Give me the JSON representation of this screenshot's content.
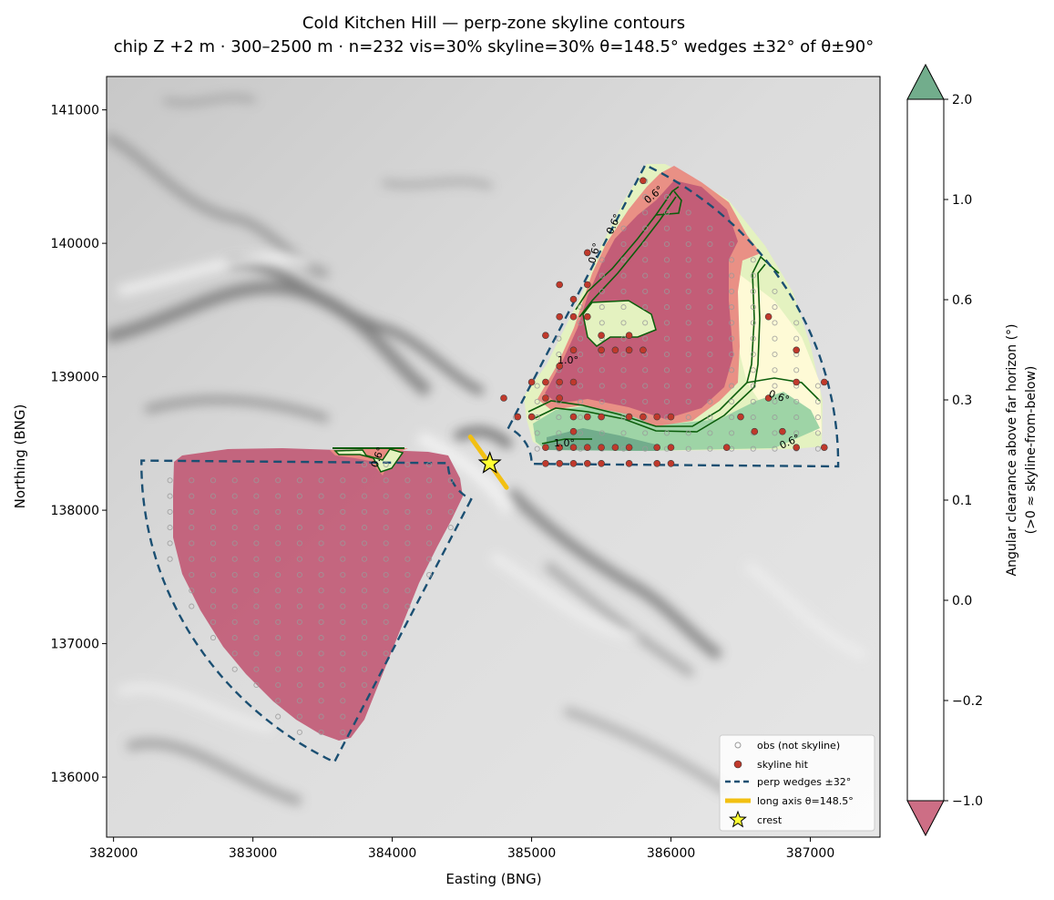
{
  "chart_data": {
    "type": "contour",
    "title": "Cold Kitchen Hill — perp-zone skyline contours",
    "subtitle": "chip Z +2 m · 300–2500 m · n=232  vis=30%  skyline=30%  θ=148.5°  wedges ±32° of θ±90°",
    "xlabel": "Easting (BNG)",
    "ylabel": "Northing (BNG)",
    "xlim": [
      381950,
      387500
    ],
    "ylim": [
      135550,
      141250
    ],
    "xticks": [
      "382000",
      "383000",
      "384000",
      "385000",
      "386000",
      "387000"
    ],
    "yticks": [
      "136000",
      "137000",
      "138000",
      "139000",
      "140000",
      "141000"
    ],
    "colorbar": {
      "label_line1": "Angular clearance above far horizon (°)",
      "label_line2": "(>0 ≈ skyline-from-below)",
      "levels": [
        "−1.0",
        "−0.2",
        "0.0",
        "0.1",
        "0.3",
        "0.6",
        "1.0",
        "2.0"
      ],
      "colors": [
        "#e98a82",
        "#fcc898",
        "#fde2b6",
        "#feedc0",
        "#fefad6",
        "#e4f2c0",
        "#9ed4a6"
      ],
      "under_color": "#cd6e85",
      "over_color": "#72ad8c"
    },
    "contour_labels": [
      "0.6°",
      "0.6°",
      "0.6°",
      "0.6°",
      "0.6°",
      "1.0°",
      "1.0°",
      "0.6°"
    ],
    "crest": {
      "easting": 384700,
      "northing": 138350
    },
    "long_axis": {
      "theta_deg": 148.5,
      "from": [
        384560,
        138550
      ],
      "to": [
        384820,
        138170
      ]
    },
    "wedges": {
      "ne": {
        "center": [
          384700,
          138350
        ],
        "r_inner": 300,
        "r_outer": 2500,
        "bearing_from": 26.5,
        "bearing_to": 90.5
      },
      "sw": {
        "center": [
          384700,
          138350
        ],
        "r_inner": 300,
        "r_outer": 2500,
        "bearing_from": 206.5,
        "bearing_to": 270.5
      }
    },
    "skyline_hits": [
      [
        385800,
        140470
      ],
      [
        385400,
        139930
      ],
      [
        385400,
        139690
      ],
      [
        385200,
        139690
      ],
      [
        385300,
        139580
      ],
      [
        385200,
        139450
      ],
      [
        385300,
        139450
      ],
      [
        385400,
        139450
      ],
      [
        385500,
        139310
      ],
      [
        385700,
        139310
      ],
      [
        385100,
        139310
      ],
      [
        385300,
        139200
      ],
      [
        385500,
        139200
      ],
      [
        385600,
        139200
      ],
      [
        385700,
        139200
      ],
      [
        385800,
        139200
      ],
      [
        385200,
        139080
      ],
      [
        385000,
        138960
      ],
      [
        385100,
        138960
      ],
      [
        385200,
        138960
      ],
      [
        385300,
        138960
      ],
      [
        384800,
        138840
      ],
      [
        385100,
        138840
      ],
      [
        385200,
        138840
      ],
      [
        384900,
        138700
      ],
      [
        385000,
        138700
      ],
      [
        385300,
        138700
      ],
      [
        385400,
        138700
      ],
      [
        385500,
        138700
      ],
      [
        385700,
        138700
      ],
      [
        385800,
        138700
      ],
      [
        385900,
        138700
      ],
      [
        386000,
        138700
      ],
      [
        385300,
        138590
      ],
      [
        385100,
        138470
      ],
      [
        385200,
        138470
      ],
      [
        385300,
        138470
      ],
      [
        385400,
        138470
      ],
      [
        385500,
        138470
      ],
      [
        385600,
        138470
      ],
      [
        385700,
        138470
      ],
      [
        385900,
        138470
      ],
      [
        386000,
        138470
      ],
      [
        386400,
        138470
      ],
      [
        386900,
        138470
      ],
      [
        387100,
        138470
      ],
      [
        385100,
        138350
      ],
      [
        385200,
        138350
      ],
      [
        385300,
        138350
      ],
      [
        385400,
        138350
      ],
      [
        385500,
        138350
      ],
      [
        385700,
        138350
      ],
      [
        385900,
        138350
      ],
      [
        386000,
        138350
      ],
      [
        386700,
        139450
      ],
      [
        386900,
        139200
      ],
      [
        386900,
        138960
      ],
      [
        386700,
        138840
      ],
      [
        386500,
        138700
      ],
      [
        387100,
        138960
      ],
      [
        386800,
        138590
      ],
      [
        386600,
        138590
      ]
    ],
    "legend": {
      "obs": "obs (not skyline)",
      "hit": "skyline hit",
      "wedge": "perp wedges ±32°",
      "axis": "long axis θ=148.5°",
      "crest": "crest"
    }
  },
  "colors": {
    "wedge": "#1b4f72",
    "long_axis": "#f2c012",
    "hit_fill": "#c0392b",
    "contour": "#0b5d0b",
    "crest_fill": "#ffff33"
  }
}
